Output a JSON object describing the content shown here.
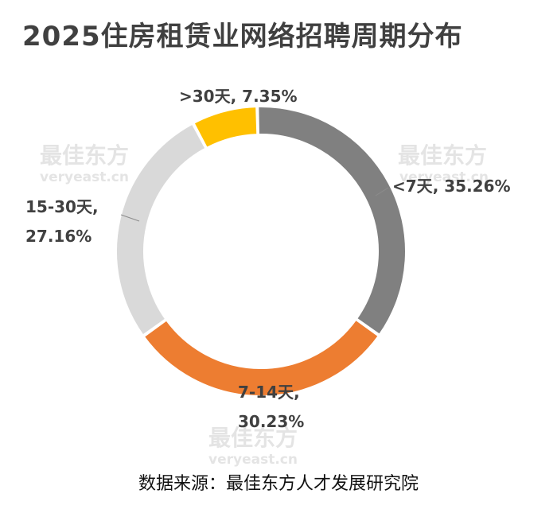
{
  "title": "2025住房租赁业网络招聘周期分布",
  "source": "数据来源：最佳东方人才发展研究院",
  "watermark": {
    "text": "最佳东方",
    "subtext": "veryeast.cn"
  },
  "chart_data": {
    "type": "pie",
    "title": "2025住房租赁业网络招聘周期分布",
    "start_angle_deg": -1.5,
    "slices": [
      {
        "label": "<7天",
        "value": 35.26,
        "display": "35.26%",
        "color": "#808080"
      },
      {
        "label": "7-14天",
        "value": 30.23,
        "display": "30.23%",
        "color": "#ED7D31"
      },
      {
        "label": "15-30天",
        "value": 27.16,
        "display": "27.16%",
        "color": "#D9D9D9"
      },
      {
        "label": ">30天",
        "value": 7.35,
        "display": "7.35%",
        "color": "#FFC000"
      }
    ]
  }
}
